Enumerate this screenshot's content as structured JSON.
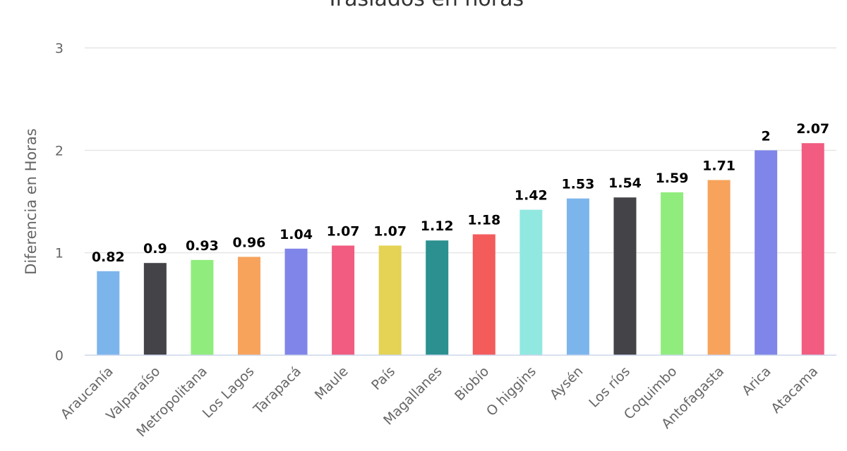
{
  "chart_data": {
    "type": "bar",
    "title": "Traslados en horas",
    "xlabel": "",
    "ylabel": "Diferencia en Horas",
    "ylim": [
      0,
      3
    ],
    "yticks": [
      0,
      1,
      2,
      3
    ],
    "grid": true,
    "legend": "none",
    "categories": [
      "Araucanía",
      "Valparaíso",
      "Metropolitana",
      "Los Lagos",
      "Tarapacá",
      "Maule",
      "País",
      "Magallanes",
      "Biobío",
      "O higgins",
      "Aysén",
      "Los ríos",
      "Coquimbo",
      "Antofagasta",
      "Arica",
      "Atacama"
    ],
    "values": [
      0.82,
      0.9,
      0.93,
      0.96,
      1.04,
      1.07,
      1.07,
      1.12,
      1.18,
      1.42,
      1.53,
      1.54,
      1.59,
      1.71,
      2,
      2.07
    ],
    "data_labels": [
      "0.82",
      "0.9",
      "0.93",
      "0.96",
      "1.04",
      "1.07",
      "1.07",
      "1.12",
      "1.18",
      "1.42",
      "1.53",
      "1.54",
      "1.59",
      "1.71",
      "2",
      "2.07"
    ],
    "colors": [
      "#7cb5ec",
      "#434348",
      "#90ed7d",
      "#f7a35c",
      "#8085e9",
      "#f15c80",
      "#e4d354",
      "#2b908f",
      "#f45b5b",
      "#91e8e1",
      "#7cb5ec",
      "#434348",
      "#90ed7d",
      "#f7a35c",
      "#8085e9",
      "#f15c80"
    ]
  }
}
